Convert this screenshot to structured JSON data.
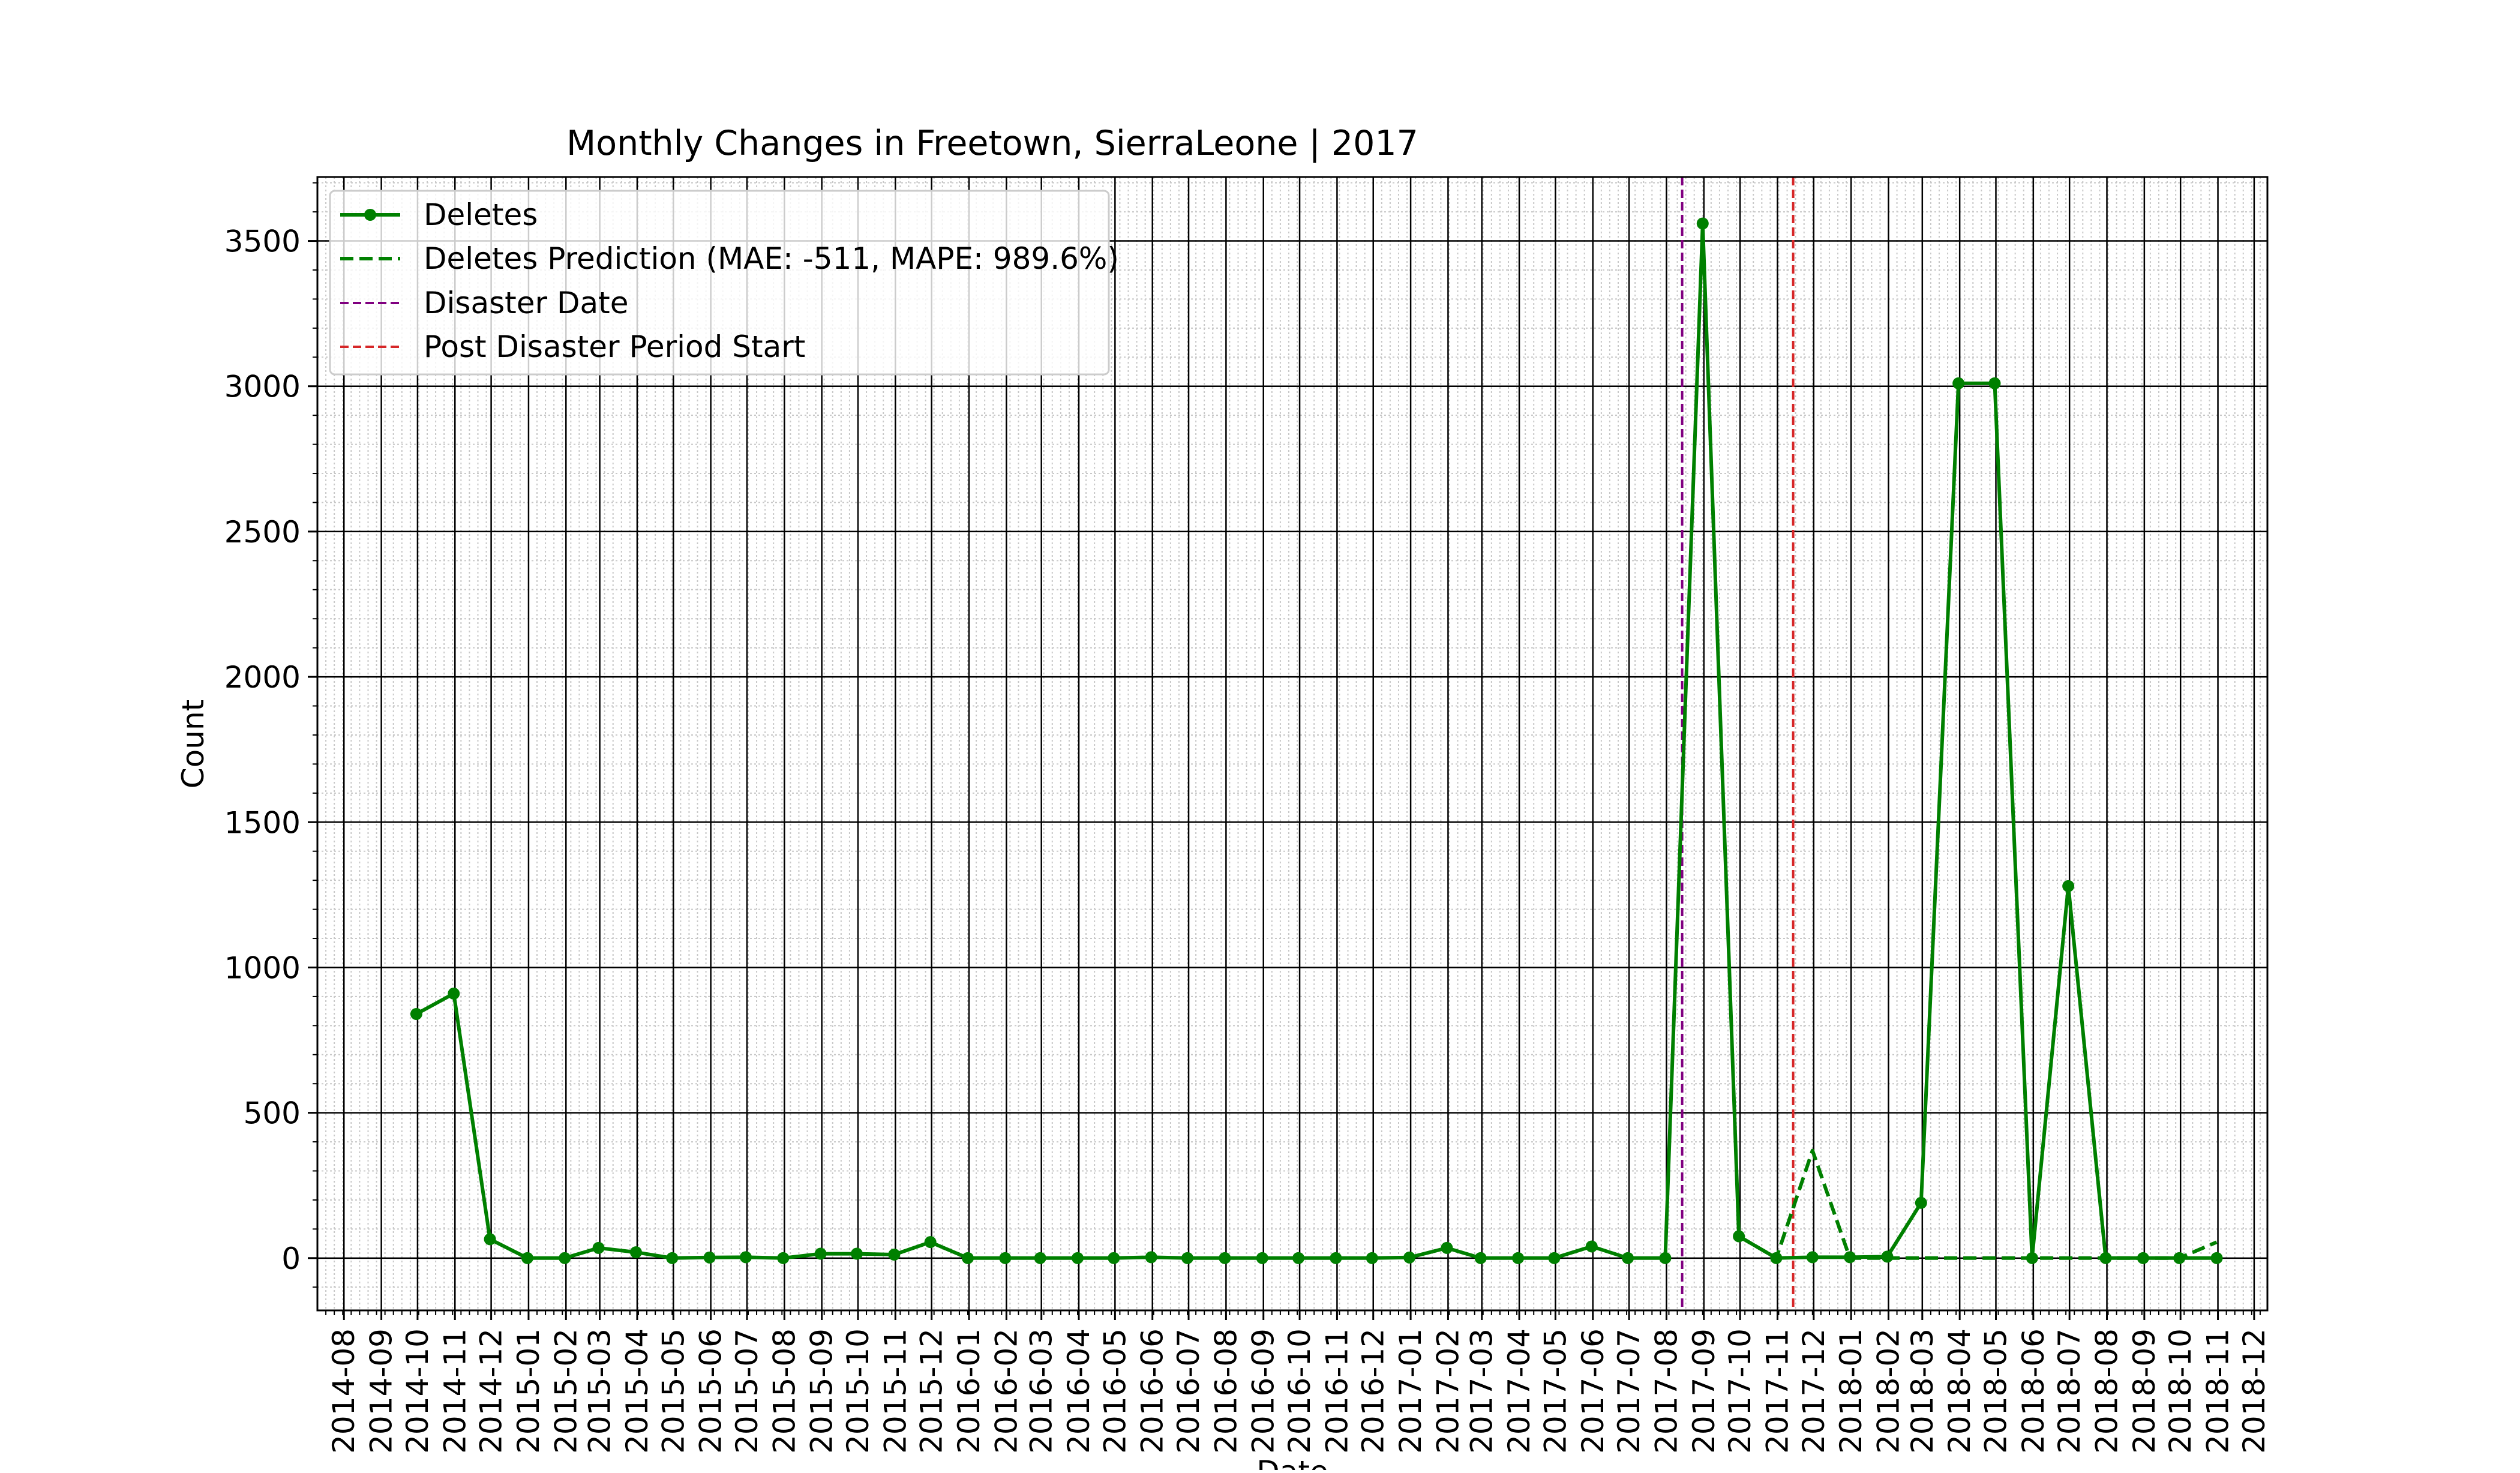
{
  "chart_data": {
    "type": "line",
    "title": "Monthly Changes in Freetown, SierraLeone | 2017",
    "xlabel": "Date",
    "ylabel": "Count",
    "ylim": [
      -180,
      3720
    ],
    "xlim": [
      "2014-07-10",
      "2018-12-12"
    ],
    "yticks": [
      0,
      500,
      1000,
      1500,
      2000,
      2500,
      3000,
      3500
    ],
    "xticks": [
      "2014-08",
      "2014-09",
      "2014-10",
      "2014-11",
      "2014-12",
      "2015-01",
      "2015-02",
      "2015-03",
      "2015-04",
      "2015-05",
      "2015-06",
      "2015-07",
      "2015-08",
      "2015-09",
      "2015-10",
      "2015-11",
      "2015-12",
      "2016-01",
      "2016-02",
      "2016-03",
      "2016-04",
      "2016-05",
      "2016-06",
      "2016-07",
      "2016-08",
      "2016-09",
      "2016-10",
      "2016-11",
      "2016-12",
      "2017-01",
      "2017-02",
      "2017-03",
      "2017-04",
      "2017-05",
      "2017-06",
      "2017-07",
      "2017-08",
      "2017-09",
      "2017-10",
      "2017-11",
      "2017-12",
      "2018-01",
      "2018-02",
      "2018-03",
      "2018-04",
      "2018-05",
      "2018-06",
      "2018-07",
      "2018-08",
      "2018-09",
      "2018-10",
      "2018-11",
      "2018-12"
    ],
    "grid": true,
    "legend_position": "top-left",
    "series": [
      {
        "name": "Deletes",
        "style": "solid-markers",
        "color": "#008000",
        "x": [
          "2014-09-30",
          "2014-10-31",
          "2014-11-30",
          "2014-12-31",
          "2015-01-31",
          "2015-02-28",
          "2015-03-31",
          "2015-04-30",
          "2015-05-31",
          "2015-06-30",
          "2015-07-31",
          "2015-08-31",
          "2015-09-30",
          "2015-10-31",
          "2015-11-30",
          "2015-12-31",
          "2016-01-31",
          "2016-02-29",
          "2016-03-31",
          "2016-04-30",
          "2016-05-31",
          "2016-06-30",
          "2016-07-31",
          "2016-08-31",
          "2016-09-30",
          "2016-10-31",
          "2016-11-30",
          "2016-12-31",
          "2017-01-31",
          "2017-02-28",
          "2017-03-31",
          "2017-04-30",
          "2017-05-31",
          "2017-06-30",
          "2017-07-31",
          "2017-08-31",
          "2017-09-30",
          "2017-10-31",
          "2017-11-30",
          "2017-12-31",
          "2018-01-31",
          "2018-02-28",
          "2018-03-31",
          "2018-04-30",
          "2018-05-31",
          "2018-06-30",
          "2018-07-31",
          "2018-08-31",
          "2018-09-30",
          "2018-10-31"
        ],
        "y": [
          840,
          910,
          65,
          0,
          0,
          35,
          20,
          0,
          2,
          3,
          0,
          15,
          15,
          12,
          55,
          0,
          0,
          0,
          0,
          0,
          3,
          0,
          0,
          0,
          0,
          0,
          0,
          2,
          35,
          0,
          0,
          0,
          40,
          0,
          0,
          3560,
          75,
          0,
          3,
          3,
          5,
          190,
          3010,
          3010,
          0,
          1280,
          0,
          0,
          0,
          0
        ]
      },
      {
        "name": "Deletes Prediction (MAE: -511, MAPE: 989.6%)",
        "style": "dashed",
        "color": "#008000",
        "x": [
          "2017-09-30",
          "2017-10-31",
          "2017-11-30",
          "2017-12-31",
          "2018-01-31",
          "2018-02-28",
          "2018-03-31",
          "2018-04-30",
          "2018-05-31",
          "2018-06-30",
          "2018-07-31",
          "2018-08-31",
          "2018-09-30",
          "2018-10-31"
        ],
        "y": [
          75,
          0,
          370,
          0,
          0,
          0,
          0,
          0,
          0,
          0,
          0,
          0,
          0,
          55
        ]
      }
    ],
    "vlines": [
      {
        "name": "Disaster Date",
        "x": "2017-08-14",
        "color": "#800080"
      },
      {
        "name": "Post Disaster Period Start",
        "x": "2017-11-14",
        "color": "#d62728"
      }
    ]
  }
}
